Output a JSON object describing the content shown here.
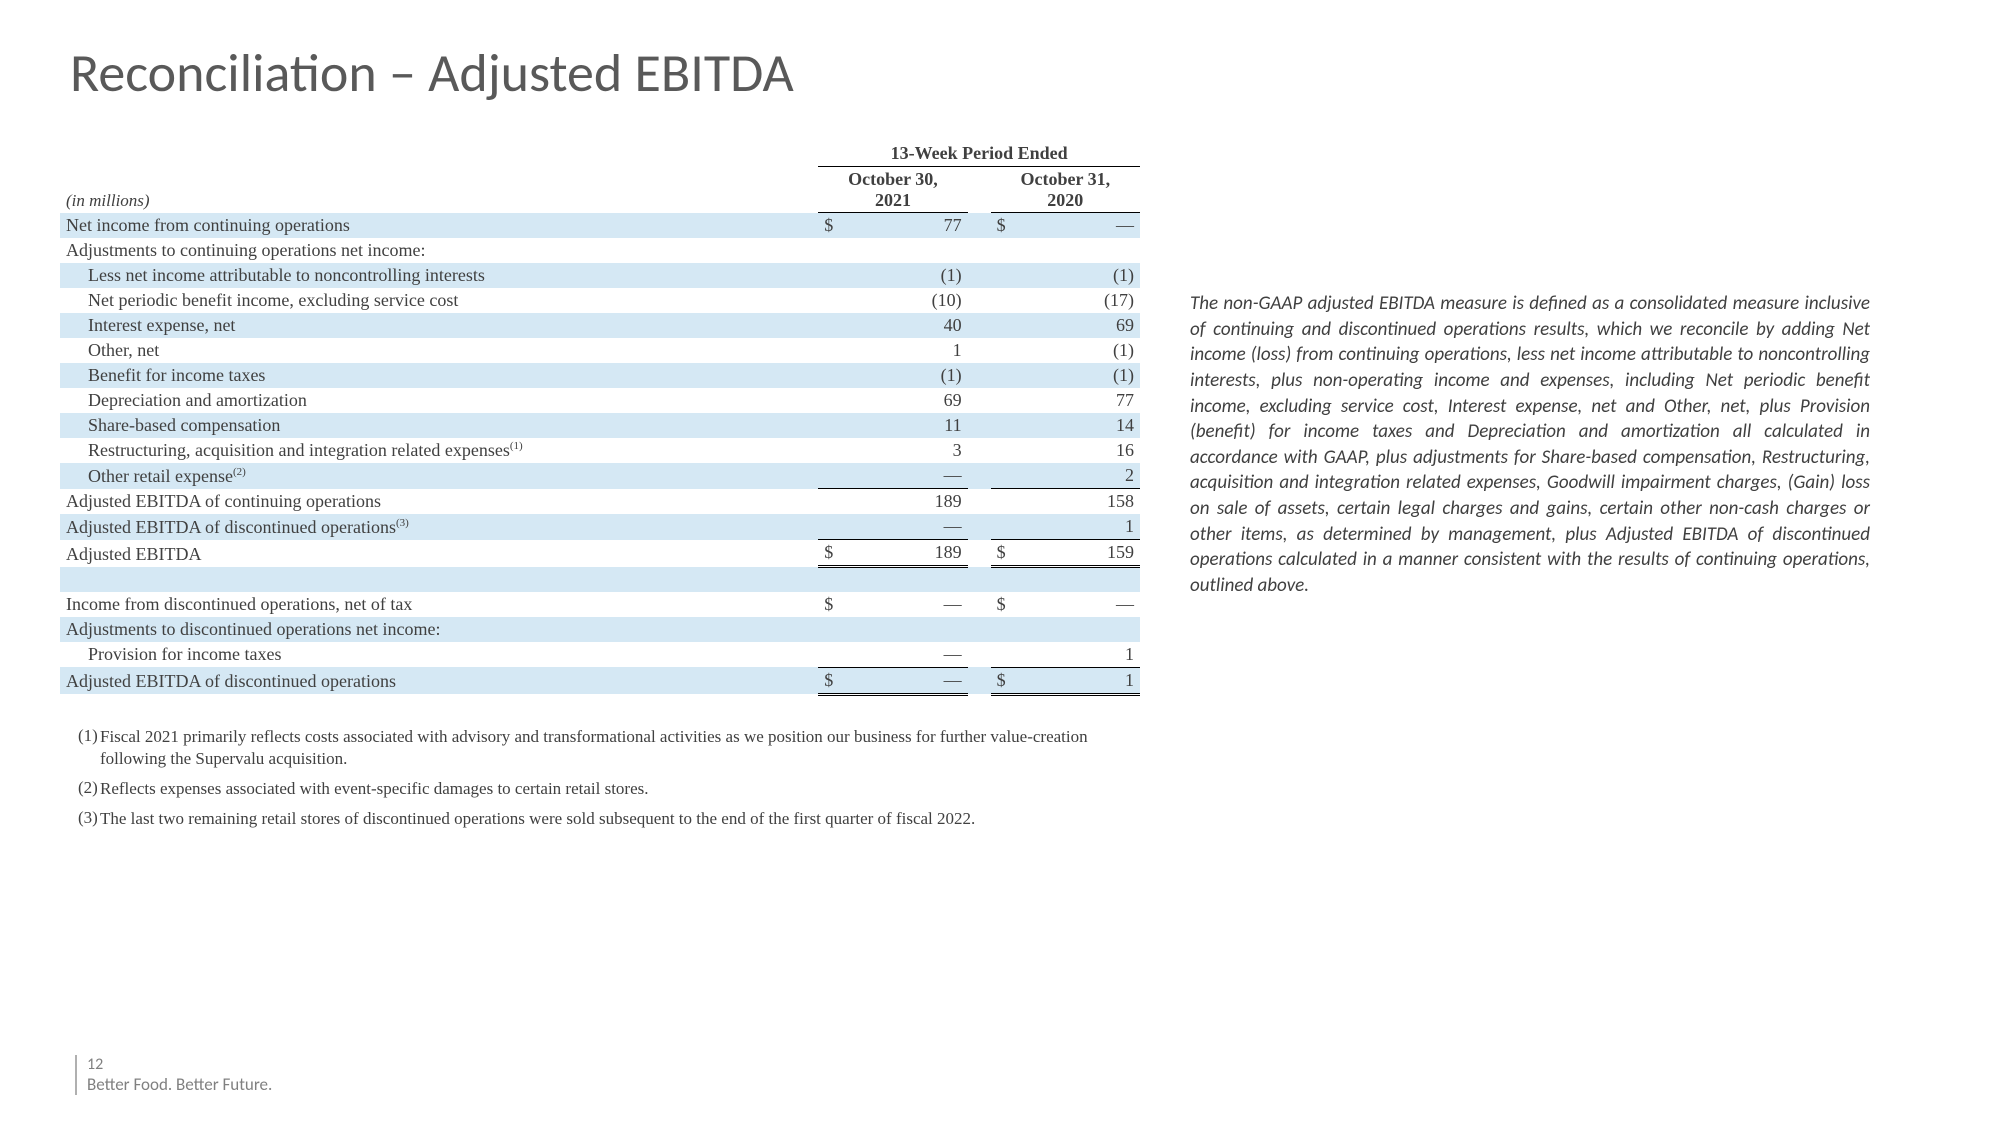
{
  "title": "Reconciliation – Adjusted EBITDA",
  "table": {
    "period_header": "13-Week Period Ended",
    "units_label": "(in millions)",
    "col1_line1": "October 30,",
    "col1_line2": "2021",
    "col2_line1": "October 31,",
    "col2_line2": "2020",
    "rows": {
      "r1": {
        "label": "Net income from continuing operations",
        "sym1": "$",
        "v1": "77",
        "sym2": "$",
        "v2": "—"
      },
      "r2": {
        "label": "Adjustments to continuing operations net income:"
      },
      "r3": {
        "label": "Less net income attributable to noncontrolling interests",
        "v1": "(1)",
        "v2": "(1)"
      },
      "r4": {
        "label": "Net periodic benefit income, excluding service cost",
        "v1": "(10)",
        "v2": "(17)"
      },
      "r5": {
        "label": "Interest expense, net",
        "v1": "40",
        "v2": "69"
      },
      "r6": {
        "label": "Other, net",
        "v1": "1",
        "v2": "(1)"
      },
      "r7": {
        "label": "Benefit for income taxes",
        "v1": "(1)",
        "v2": "(1)"
      },
      "r8": {
        "label": "Depreciation and amortization",
        "v1": "69",
        "v2": "77"
      },
      "r9": {
        "label": "Share-based compensation",
        "v1": "11",
        "v2": "14"
      },
      "r10": {
        "label": "Restructuring, acquisition and integration related expenses",
        "sup": "(1)",
        "v1": "3",
        "v2": "16"
      },
      "r11": {
        "label": "Other retail expense",
        "sup": "(2)",
        "v1": "—",
        "v2": "2"
      },
      "r12": {
        "label": "Adjusted EBITDA of continuing operations",
        "v1": "189",
        "v2": "158"
      },
      "r13": {
        "label": "Adjusted EBITDA of discontinued operations",
        "sup": "(3)",
        "v1": "—",
        "v2": "1"
      },
      "r14": {
        "label": "Adjusted EBITDA",
        "sym1": "$",
        "v1": "189",
        "sym2": "$",
        "v2": "159"
      },
      "r15": {
        "label": "Income from discontinued operations, net of tax",
        "sym1": "$",
        "v1": "—",
        "sym2": "$",
        "v2": "—"
      },
      "r16": {
        "label": "Adjustments to discontinued operations net income:"
      },
      "r17": {
        "label": "Provision for income taxes",
        "v1": "—",
        "v2": "1"
      },
      "r18": {
        "label": "Adjusted EBITDA of discontinued operations",
        "sym1": "$",
        "v1": "—",
        "sym2": "$",
        "v2": "1"
      }
    }
  },
  "footnotes": {
    "f1": {
      "num": "(1)",
      "text": "Fiscal 2021 primarily reflects costs associated with advisory and transformational activities as we position our business for further value-creation following the Supervalu acquisition."
    },
    "f2": {
      "num": "(2)",
      "text": "Reflects expenses associated with event-specific damages to certain retail stores."
    },
    "f3": {
      "num": "(3)",
      "text": "The last two remaining retail stores of discontinued operations were sold subsequent to the end of the first quarter of fiscal 2022."
    }
  },
  "side_text": "The non-GAAP adjusted EBITDA measure is defined as a consolidated measure inclusive of continuing and discontinued operations results, which we reconcile by adding Net income (loss) from continuing operations, less net income attributable to noncontrolling interests, plus non-operating income and expenses, including Net periodic benefit income, excluding service cost, Interest expense, net and Other, net, plus Provision (benefit) for income taxes and Depreciation and amortization all calculated in accordance with GAAP, plus adjustments for Share-based compensation, Restructuring, acquisition and integration related expenses, Goodwill impairment charges, (Gain) loss on sale of assets, certain legal charges and gains, certain other non-cash charges or other items, as determined by management, plus Adjusted EBITDA of discontinued operations calculated in a manner consistent with the results of continuing operations, outlined above.",
  "footer": {
    "page": "12",
    "tagline": "Better Food. Better Future."
  }
}
